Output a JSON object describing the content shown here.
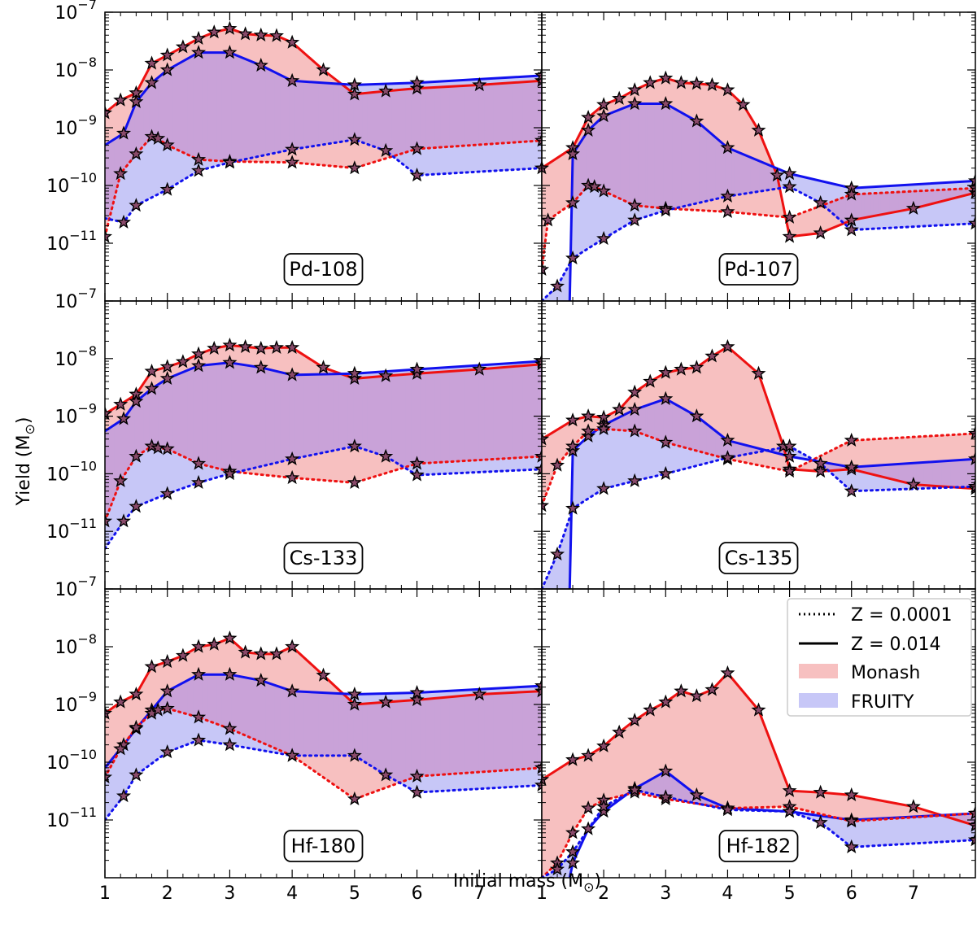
{
  "chart_data": {
    "type": "line",
    "xlabel": "Initial mass (M",
    "xlabel_sub": "⊙",
    "xlabel_tail": ")",
    "ylabel": "Yield (M",
    "ylabel_sub": "⊙",
    "ylabel_tail": ")",
    "xlim": [
      1,
      8
    ],
    "ylim": [
      1e-12,
      1e-07
    ],
    "yscale": "log",
    "x_ticks": [
      "1",
      "2",
      "3",
      "4",
      "5",
      "6",
      "7"
    ],
    "y_tick_exponents": [
      "-7",
      "-8",
      "-9",
      "-10",
      "-11"
    ],
    "y_tick_base": "10",
    "colors": {
      "monash": "#ee1111",
      "fruity": "#1111ee",
      "monash_fill": "#f7c0c0",
      "fruity_fill": "#c7c7f7",
      "overlap_fill": "#c9a2d8"
    },
    "legend": {
      "position": "upper-right of Hf-182 panel",
      "entries": [
        {
          "label": "Z = 0.0001",
          "style": "dotted"
        },
        {
          "label": "Z = 0.014",
          "style": "solid"
        },
        {
          "label": "Monash",
          "style": "fill-red"
        },
        {
          "label": "FRUITY",
          "style": "fill-blue"
        }
      ]
    },
    "panels": [
      {
        "isotope": "Pd-108",
        "series": [
          {
            "name": "Monash Z = 0.014",
            "x": [
              1,
              1.25,
              1.5,
              1.75,
              2,
              2.25,
              2.5,
              2.75,
              3,
              3.25,
              3.5,
              3.75,
              4,
              4.5,
              5,
              5.5,
              6,
              7,
              8
            ],
            "y": [
              1.8e-09,
              3e-09,
              4e-09,
              1.3e-08,
              1.8e-08,
              2.5e-08,
              3.5e-08,
              4.5e-08,
              5.2e-08,
              4.2e-08,
              4e-08,
              3.9e-08,
              3e-08,
              1e-08,
              3.8e-09,
              4.3e-09,
              4.8e-09,
              5.5e-09,
              6.5e-09
            ]
          },
          {
            "name": "FRUITY Z = 0.014",
            "x": [
              1,
              1.3,
              1.5,
              1.75,
              2,
              2.5,
              3,
              3.5,
              4,
              5,
              6,
              8
            ],
            "y": [
              5e-10,
              8e-10,
              2.8e-09,
              6e-09,
              1e-08,
              2e-08,
              2e-08,
              1.2e-08,
              6.5e-09,
              5.5e-09,
              6e-09,
              8e-09
            ]
          },
          {
            "name": "Monash Z = 0.0001",
            "x": [
              1,
              1.25,
              1.5,
              1.75,
              1.85,
              2,
              2.5,
              3,
              4,
              5,
              6,
              8
            ],
            "y": [
              1.3e-11,
              1.6e-10,
              3.5e-10,
              7e-10,
              6.5e-10,
              5e-10,
              2.8e-10,
              2.6e-10,
              2.5e-10,
              2e-10,
              4.3e-10,
              6e-10
            ]
          },
          {
            "name": "FRUITY Z = 0.0001",
            "x": [
              1,
              1.3,
              1.5,
              2,
              2.5,
              3,
              4,
              5,
              5.5,
              6,
              8
            ],
            "y": [
              2.7e-11,
              2.3e-11,
              4.5e-11,
              8.5e-11,
              1.8e-10,
              2.5e-10,
              4.2e-10,
              6.2e-10,
              4e-10,
              1.5e-10,
              2e-10
            ]
          }
        ]
      },
      {
        "isotope": "Pd-107",
        "series": [
          {
            "name": "Monash Z = 0.014",
            "x": [
              1,
              1.5,
              1.75,
              2,
              2.25,
              2.5,
              2.75,
              3,
              3.25,
              3.5,
              3.75,
              4,
              4.25,
              4.5,
              4.8,
              5,
              5.5,
              6,
              7,
              8
            ],
            "y": [
              2e-10,
              4.5e-10,
              1.5e-09,
              2.5e-09,
              3.2e-09,
              4.5e-09,
              6e-09,
              7.2e-09,
              6e-09,
              5.8e-09,
              5.5e-09,
              4.5e-09,
              2.5e-09,
              9e-10,
              1.5e-10,
              1.3e-11,
              1.5e-11,
              2.5e-11,
              4e-11,
              7.5e-11
            ]
          },
          {
            "name": "FRUITY Z = 0.014",
            "x": [
              1.45,
              1.5,
              1.75,
              2,
              2.5,
              3,
              3.5,
              4,
              5,
              6,
              8
            ],
            "y": [
              1e-12,
              3.5e-10,
              9e-10,
              1.6e-09,
              2.6e-09,
              2.6e-09,
              1.3e-09,
              4.5e-10,
              1.6e-10,
              9e-11,
              1.2e-10
            ]
          },
          {
            "name": "Monash Z = 0.0001",
            "x": [
              1,
              1.1,
              1.5,
              1.75,
              1.85,
              2,
              2.5,
              3,
              4,
              5,
              6,
              8
            ],
            "y": [
              3.5e-12,
              2.5e-11,
              5e-11,
              1e-10,
              9.5e-11,
              8e-11,
              4.5e-11,
              4e-11,
              3.5e-11,
              2.8e-11,
              7e-11,
              9e-11
            ]
          },
          {
            "name": "FRUITY Z = 0.0001",
            "x": [
              1,
              1.25,
              1.5,
              2,
              2.5,
              3,
              4,
              5,
              5.5,
              6,
              8
            ],
            "y": [
              1e-12,
              1.8e-12,
              5.5e-12,
              1.2e-11,
              2.5e-11,
              3.7e-11,
              6.5e-11,
              9.5e-11,
              5e-11,
              1.7e-11,
              2.2e-11
            ]
          }
        ]
      },
      {
        "isotope": "Cs-133",
        "series": [
          {
            "name": "Monash Z = 0.014",
            "x": [
              1,
              1.25,
              1.5,
              1.75,
              2,
              2.25,
              2.5,
              2.75,
              3,
              3.25,
              3.5,
              3.75,
              4,
              4.5,
              5,
              5.5,
              6,
              7,
              8
            ],
            "y": [
              1.1e-09,
              1.6e-09,
              2.4e-09,
              6e-09,
              7.2e-09,
              8.8e-09,
              1.2e-08,
              1.5e-08,
              1.7e-08,
              1.6e-08,
              1.5e-08,
              1.55e-08,
              1.55e-08,
              7e-09,
              4.5e-09,
              5e-09,
              5.5e-09,
              6.5e-09,
              8e-09
            ]
          },
          {
            "name": "FRUITY Z = 0.014",
            "x": [
              1,
              1.3,
              1.5,
              1.75,
              2,
              2.5,
              3,
              3.5,
              4,
              5,
              6,
              8
            ],
            "y": [
              5.5e-10,
              9e-10,
              1.8e-09,
              3e-09,
              4.5e-09,
              7.5e-09,
              8.5e-09,
              7e-09,
              5.2e-09,
              5.5e-09,
              6.5e-09,
              9e-09
            ]
          },
          {
            "name": "Monash Z = 0.0001",
            "x": [
              1,
              1.25,
              1.5,
              1.75,
              1.85,
              2,
              2.5,
              3,
              4,
              5,
              6,
              8
            ],
            "y": [
              1.5e-11,
              7.5e-11,
              2e-10,
              3e-10,
              2.8e-10,
              2.7e-10,
              1.5e-10,
              1.1e-10,
              8.5e-11,
              7e-11,
              1.5e-10,
              2e-10
            ]
          },
          {
            "name": "FRUITY Z = 0.0001",
            "x": [
              1,
              1.3,
              1.5,
              2,
              2.5,
              3,
              4,
              5,
              5.5,
              6,
              8
            ],
            "y": [
              5e-12,
              1.5e-11,
              2.7e-11,
              4.5e-11,
              7e-11,
              1e-10,
              1.8e-10,
              3e-10,
              2e-10,
              9.5e-11,
              1.2e-10
            ]
          }
        ]
      },
      {
        "isotope": "Cs-135",
        "series": [
          {
            "name": "Monash Z = 0.014",
            "x": [
              1,
              1.5,
              1.75,
              2,
              2.25,
              2.5,
              2.75,
              3,
              3.25,
              3.5,
              3.75,
              4,
              4.5,
              4.9,
              5,
              5.5,
              6,
              7,
              8
            ],
            "y": [
              4e-10,
              8.5e-10,
              1e-09,
              9.5e-10,
              1.3e-09,
              2.6e-09,
              4e-09,
              5.7e-09,
              6.5e-09,
              7e-09,
              1.1e-08,
              1.6e-08,
              5.5e-09,
              3e-10,
              1.2e-10,
              1.1e-10,
              1.2e-10,
              6.5e-11,
              5.5e-11
            ]
          },
          {
            "name": "FRUITY Z = 0.014",
            "x": [
              1.45,
              1.5,
              1.75,
              2,
              2.5,
              3,
              3.5,
              4,
              5,
              6,
              8
            ],
            "y": [
              1e-12,
              2.5e-10,
              4.5e-10,
              7e-10,
              1.3e-09,
              2e-09,
              1e-09,
              3.8e-10,
              2e-10,
              1.3e-10,
              1.8e-10
            ]
          },
          {
            "name": "Monash Z = 0.0001",
            "x": [
              1,
              1.25,
              1.5,
              1.75,
              2,
              2.5,
              3,
              4,
              5,
              6,
              8
            ],
            "y": [
              2.8e-11,
              1.4e-10,
              3e-10,
              5.5e-10,
              6e-10,
              5.5e-10,
              3.5e-10,
              1.8e-10,
              1.1e-10,
              3.8e-10,
              5e-10
            ]
          },
          {
            "name": "FRUITY Z = 0.0001",
            "x": [
              1,
              1.25,
              1.5,
              2,
              2.5,
              3,
              4,
              5,
              5.5,
              6,
              8
            ],
            "y": [
              1e-12,
              4e-12,
              2.5e-11,
              5.5e-11,
              7.5e-11,
              1e-10,
              1.9e-10,
              3e-10,
              1.5e-10,
              5e-11,
              6e-11
            ]
          }
        ]
      },
      {
        "isotope": "Hf-180",
        "series": [
          {
            "name": "Monash Z = 0.014",
            "x": [
              1,
              1.25,
              1.5,
              1.75,
              2,
              2.25,
              2.5,
              2.75,
              3,
              3.25,
              3.5,
              3.75,
              4,
              4.5,
              5,
              5.5,
              6,
              7,
              8
            ],
            "y": [
              7e-10,
              1.1e-09,
              1.5e-09,
              4.5e-09,
              5.5e-09,
              7e-09,
              1e-08,
              1.1e-08,
              1.4e-08,
              8e-09,
              7.5e-09,
              7.5e-09,
              1e-08,
              3.2e-09,
              1e-09,
              1.1e-09,
              1.2e-09,
              1.5e-09,
              1.7e-09
            ]
          },
          {
            "name": "FRUITY Z = 0.014",
            "x": [
              1,
              1.3,
              1.5,
              1.75,
              2,
              2.5,
              3,
              3.5,
              4,
              5,
              6,
              8
            ],
            "y": [
              8e-11,
              2e-10,
              3.8e-10,
              8e-10,
              1.7e-09,
              3.3e-09,
              3.3e-09,
              2.6e-09,
              1.7e-09,
              1.5e-09,
              1.6e-09,
              2.1e-09
            ]
          },
          {
            "name": "Monash Z = 0.0001",
            "x": [
              1,
              1.25,
              1.5,
              1.75,
              1.85,
              2,
              2.5,
              3,
              4,
              5,
              6,
              8
            ],
            "y": [
              5.5e-11,
              1.7e-10,
              4e-10,
              7e-10,
              8e-10,
              8.5e-10,
              6e-10,
              3.8e-10,
              1.3e-10,
              2.3e-11,
              5.7e-11,
              8e-11
            ]
          },
          {
            "name": "FRUITY Z = 0.0001",
            "x": [
              1,
              1.3,
              1.5,
              2,
              2.5,
              3,
              4,
              5,
              5.5,
              6,
              8
            ],
            "y": [
              1e-11,
              2.6e-11,
              6e-11,
              1.5e-10,
              2.4e-10,
              2e-10,
              1.3e-10,
              1.3e-10,
              6e-11,
              3e-11,
              4e-11
            ]
          }
        ]
      },
      {
        "isotope": "Hf-182",
        "series": [
          {
            "name": "Monash Z = 0.014",
            "x": [
              1,
              1.5,
              1.75,
              2,
              2.25,
              2.5,
              2.75,
              3,
              3.25,
              3.5,
              3.75,
              4,
              4.5,
              5,
              5.5,
              6,
              7,
              8
            ],
            "y": [
              5e-11,
              1.1e-10,
              1.3e-10,
              1.9e-10,
              3.3e-10,
              5.3e-10,
              8e-10,
              1.1e-09,
              1.7e-09,
              1.4e-09,
              1.8e-09,
              3.5e-09,
              8e-10,
              3.2e-11,
              3e-11,
              2.7e-11,
              1.7e-11,
              8e-12
            ]
          },
          {
            "name": "FRUITY Z = 0.014",
            "x": [
              1.45,
              1.5,
              1.75,
              2,
              2.5,
              3,
              3.5,
              4,
              5,
              6,
              8
            ],
            "y": [
              1e-12,
              1.8e-12,
              7e-12,
              1.4e-11,
              3.5e-11,
              7e-11,
              2.7e-11,
              1.6e-11,
              1.4e-11,
              1e-11,
              1.3e-11
            ]
          },
          {
            "name": "Monash Z = 0.0001",
            "x": [
              1,
              1.25,
              1.5,
              1.75,
              2,
              2.5,
              3,
              4,
              5,
              6,
              8
            ],
            "y": [
              1e-12,
              1.8e-12,
              6e-12,
              1.6e-11,
              2.2e-11,
              3e-11,
              2.3e-11,
              1.6e-11,
              1.7e-11,
              9.5e-12,
              1.3e-11
            ]
          },
          {
            "name": "FRUITY Z = 0.0001",
            "x": [
              1,
              1.25,
              1.5,
              2,
              2.5,
              3,
              4,
              5,
              5.5,
              6,
              8
            ],
            "y": [
              1e-12,
              1.4e-12,
              2.8e-12,
              1.7e-11,
              3.3e-11,
              2.5e-11,
              1.5e-11,
              1.4e-11,
              9e-12,
              3.4e-12,
              4.5e-12
            ]
          }
        ]
      }
    ]
  }
}
